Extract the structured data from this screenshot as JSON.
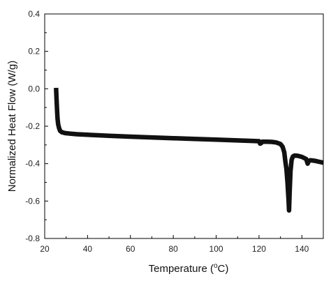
{
  "chart_data": {
    "type": "line",
    "title": "",
    "xlabel": "Temperature (",
    "xlabel_sup": "o",
    "xlabel_tail": "C)",
    "ylabel": "Normalized Heat Flow (W/g)",
    "xlim": [
      20,
      150
    ],
    "ylim": [
      -0.8,
      0.4
    ],
    "x_ticks": [
      20,
      40,
      60,
      80,
      100,
      120,
      140
    ],
    "x_tick_labels": [
      "20",
      "40",
      "60",
      "80",
      "100",
      "120",
      "140"
    ],
    "y_ticks": [
      0.4,
      0.2,
      0.0,
      -0.2,
      -0.4,
      -0.6,
      -0.8
    ],
    "y_tick_labels": [
      "0.4",
      "0.2",
      "0.0",
      "-0.2",
      "-0.4",
      "-0.6",
      "-0.8"
    ],
    "grid": false,
    "legend": "none",
    "series": [
      {
        "color": "#111111",
        "x": [
          25.3,
          25.5,
          25.8,
          26.0,
          26.3,
          26.7,
          27.2,
          28.0,
          29.5,
          32,
          35,
          40,
          50,
          60,
          70,
          80,
          90,
          100,
          110,
          118,
          120,
          120.5,
          121,
          121.5,
          122,
          124,
          126,
          128,
          130,
          131,
          131.8,
          132.3,
          132.8,
          133.3,
          133.8,
          134.0,
          134.3,
          134.7,
          135.2,
          135.8,
          136.5,
          138,
          140,
          142,
          142.7,
          143.3,
          144,
          146,
          148,
          150
        ],
        "y": [
          0.005,
          -0.05,
          -0.12,
          -0.16,
          -0.19,
          -0.21,
          -0.225,
          -0.232,
          -0.237,
          -0.24,
          -0.243,
          -0.246,
          -0.251,
          -0.256,
          -0.26,
          -0.264,
          -0.268,
          -0.272,
          -0.276,
          -0.279,
          -0.28,
          -0.293,
          -0.29,
          -0.283,
          -0.283,
          -0.283,
          -0.284,
          -0.287,
          -0.295,
          -0.31,
          -0.34,
          -0.39,
          -0.43,
          -0.5,
          -0.6,
          -0.65,
          -0.55,
          -0.44,
          -0.38,
          -0.362,
          -0.357,
          -0.358,
          -0.364,
          -0.375,
          -0.4,
          -0.385,
          -0.382,
          -0.385,
          -0.39,
          -0.395
        ]
      }
    ]
  }
}
